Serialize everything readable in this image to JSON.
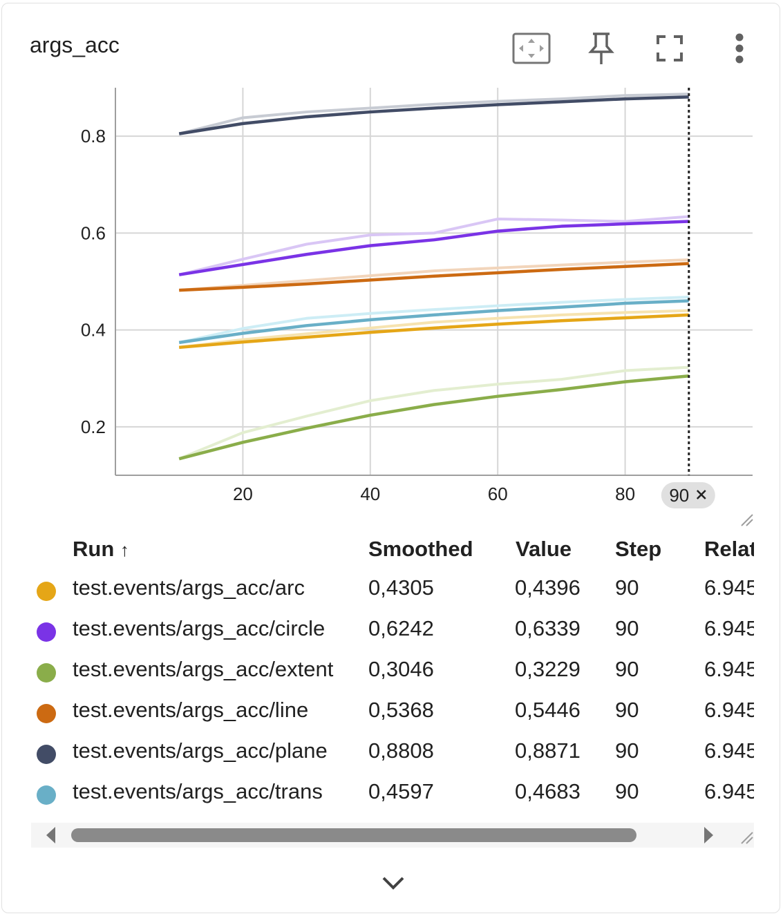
{
  "card": {
    "title": "args_acc",
    "toolbar_icons": [
      "fit-domain-icon",
      "pin-icon",
      "fullscreen-icon",
      "more-vert-icon"
    ]
  },
  "chart_data": {
    "type": "line",
    "title": "",
    "xlabel": "",
    "ylabel": "",
    "xlim": [
      0,
      100
    ],
    "ylim": [
      0.1,
      0.9
    ],
    "x_ticks": [
      20,
      40,
      60,
      80
    ],
    "y_ticks": [
      0.2,
      0.4,
      0.6,
      0.8
    ],
    "x_tick_labels": [
      "20",
      "40",
      "60",
      "80"
    ],
    "y_tick_labels": [
      "0.2",
      "0.4",
      "0.6",
      "0.8"
    ],
    "grid": true,
    "cursor_step": 90,
    "cursor_step_label": "90",
    "x": [
      10,
      20,
      30,
      40,
      50,
      60,
      70,
      80,
      90
    ],
    "series": [
      {
        "name": "test.events/args_acc/plane",
        "color": "#424c66",
        "raw_color": "#c7cbd3",
        "smoothed": [
          0.805,
          0.826,
          0.84,
          0.85,
          0.858,
          0.865,
          0.871,
          0.877,
          0.881
        ],
        "raw": [
          0.805,
          0.838,
          0.85,
          0.858,
          0.866,
          0.872,
          0.877,
          0.884,
          0.887
        ]
      },
      {
        "name": "test.events/args_acc/circle",
        "color": "#7a33e6",
        "raw_color": "#d9c6f5",
        "smoothed": [
          0.514,
          0.535,
          0.556,
          0.574,
          0.586,
          0.604,
          0.614,
          0.619,
          0.624
        ],
        "raw": [
          0.514,
          0.546,
          0.577,
          0.596,
          0.6,
          0.629,
          0.627,
          0.624,
          0.634
        ]
      },
      {
        "name": "test.events/args_acc/line",
        "color": "#cc6a12",
        "raw_color": "#f2d5bb",
        "smoothed": [
          0.482,
          0.488,
          0.495,
          0.503,
          0.511,
          0.518,
          0.525,
          0.531,
          0.537
        ],
        "raw": [
          0.482,
          0.492,
          0.502,
          0.512,
          0.522,
          0.528,
          0.534,
          0.54,
          0.545
        ]
      },
      {
        "name": "test.events/args_acc/trans",
        "color": "#69afc7",
        "raw_color": "#cdedf5",
        "smoothed": [
          0.374,
          0.393,
          0.409,
          0.421,
          0.431,
          0.44,
          0.447,
          0.455,
          0.46
        ],
        "raw": [
          0.374,
          0.403,
          0.424,
          0.434,
          0.442,
          0.45,
          0.457,
          0.463,
          0.468
        ]
      },
      {
        "name": "test.events/args_acc/arc",
        "color": "#e5a617",
        "raw_color": "#f6e3b0",
        "smoothed": [
          0.364,
          0.375,
          0.385,
          0.395,
          0.404,
          0.412,
          0.419,
          0.425,
          0.431
        ],
        "raw": [
          0.364,
          0.38,
          0.392,
          0.404,
          0.416,
          0.424,
          0.431,
          0.436,
          0.44
        ]
      },
      {
        "name": "test.events/args_acc/extent",
        "color": "#8aad4a",
        "raw_color": "#e3eed0",
        "smoothed": [
          0.134,
          0.168,
          0.197,
          0.224,
          0.246,
          0.263,
          0.277,
          0.293,
          0.305
        ],
        "raw": [
          0.134,
          0.188,
          0.222,
          0.254,
          0.275,
          0.288,
          0.298,
          0.316,
          0.323
        ]
      }
    ]
  },
  "table": {
    "columns": [
      "Run",
      "Smoothed",
      "Value",
      "Step",
      "Relat"
    ],
    "sort_indicator": "↑",
    "rows": [
      {
        "run": "test.events/args_acc/arc",
        "smoothed": "0,4305",
        "value": "0,4396",
        "step": "90",
        "relative": "6.945",
        "color": "#e5a617"
      },
      {
        "run": "test.events/args_acc/circle",
        "smoothed": "0,6242",
        "value": "0,6339",
        "step": "90",
        "relative": "6.945",
        "color": "#7a33e6"
      },
      {
        "run": "test.events/args_acc/extent",
        "smoothed": "0,3046",
        "value": "0,3229",
        "step": "90",
        "relative": "6.945",
        "color": "#8aad4a"
      },
      {
        "run": "test.events/args_acc/line",
        "smoothed": "0,5368",
        "value": "0,5446",
        "step": "90",
        "relative": "6.945",
        "color": "#cc6a12"
      },
      {
        "run": "test.events/args_acc/plane",
        "smoothed": "0,8808",
        "value": "0,8871",
        "step": "90",
        "relative": "6.945",
        "color": "#424c66"
      },
      {
        "run": "test.events/args_acc/trans",
        "smoothed": "0,4597",
        "value": "0,4683",
        "step": "90",
        "relative": "6.945",
        "color": "#69afc7"
      }
    ]
  },
  "footer": {
    "expand_icon": "chevron-down-icon"
  }
}
